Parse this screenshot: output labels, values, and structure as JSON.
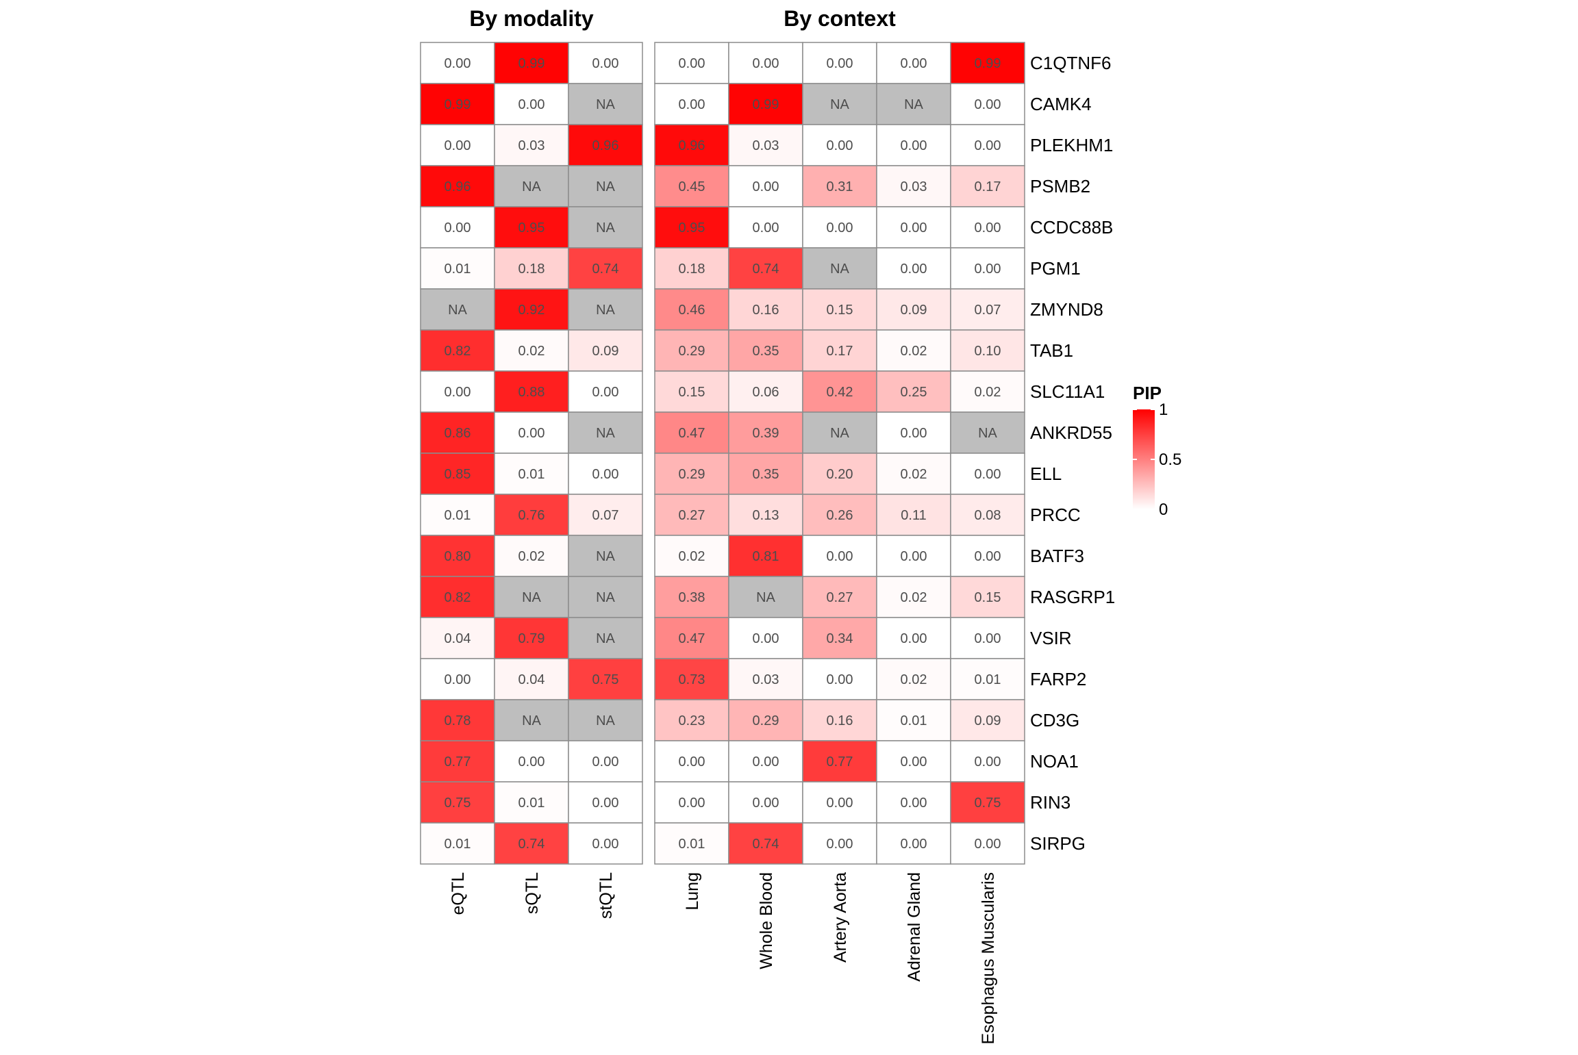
{
  "chart_data": {
    "type": "heatmap",
    "rows": [
      "C1QTNF6",
      "CAMK4",
      "PLEKHM1",
      "PSMB2",
      "CCDC88B",
      "PGM1",
      "ZMYND8",
      "TAB1",
      "SLC11A1",
      "ANKRD55",
      "ELL",
      "PRCC",
      "BATF3",
      "RASGRP1",
      "VSIR",
      "FARP2",
      "CD3G",
      "NOA1",
      "RIN3",
      "SIRPG"
    ],
    "panels": [
      {
        "title": "By modality",
        "columns": [
          "eQTL",
          "sQTL",
          "stQTL"
        ],
        "values": [
          [
            0.0,
            0.99,
            0.0
          ],
          [
            0.99,
            0.0,
            null
          ],
          [
            0.0,
            0.03,
            0.96
          ],
          [
            0.96,
            null,
            null
          ],
          [
            0.0,
            0.95,
            null
          ],
          [
            0.01,
            0.18,
            0.74
          ],
          [
            null,
            0.92,
            null
          ],
          [
            0.82,
            0.02,
            0.09
          ],
          [
            0.0,
            0.88,
            0.0
          ],
          [
            0.86,
            0.0,
            null
          ],
          [
            0.85,
            0.01,
            0.0
          ],
          [
            0.01,
            0.76,
            0.07
          ],
          [
            0.8,
            0.02,
            null
          ],
          [
            0.82,
            null,
            null
          ],
          [
            0.04,
            0.79,
            null
          ],
          [
            0.0,
            0.04,
            0.75
          ],
          [
            0.78,
            null,
            null
          ],
          [
            0.77,
            0.0,
            0.0
          ],
          [
            0.75,
            0.01,
            0.0
          ],
          [
            0.01,
            0.74,
            0.0
          ]
        ]
      },
      {
        "title": "By context",
        "columns": [
          "Lung",
          "Whole Blood",
          "Artery Aorta",
          "Adrenal Gland",
          "Esophagus Muscularis"
        ],
        "values": [
          [
            0.0,
            0.0,
            0.0,
            0.0,
            0.99
          ],
          [
            0.0,
            0.99,
            null,
            null,
            0.0
          ],
          [
            0.96,
            0.03,
            0.0,
            0.0,
            0.0
          ],
          [
            0.45,
            0.0,
            0.31,
            0.03,
            0.17
          ],
          [
            0.95,
            0.0,
            0.0,
            0.0,
            0.0
          ],
          [
            0.18,
            0.74,
            null,
            0.0,
            0.0
          ],
          [
            0.46,
            0.16,
            0.15,
            0.09,
            0.07
          ],
          [
            0.29,
            0.35,
            0.17,
            0.02,
            0.1
          ],
          [
            0.15,
            0.06,
            0.42,
            0.25,
            0.02
          ],
          [
            0.47,
            0.39,
            null,
            0.0,
            null
          ],
          [
            0.29,
            0.35,
            0.2,
            0.02,
            0.0
          ],
          [
            0.27,
            0.13,
            0.26,
            0.11,
            0.08
          ],
          [
            0.02,
            0.81,
            0.0,
            0.0,
            0.0
          ],
          [
            0.38,
            null,
            0.27,
            0.02,
            0.15
          ],
          [
            0.47,
            0.0,
            0.34,
            0.0,
            0.0
          ],
          [
            0.73,
            0.03,
            0.0,
            0.02,
            0.01
          ],
          [
            0.23,
            0.29,
            0.16,
            0.01,
            0.09
          ],
          [
            0.0,
            0.0,
            0.77,
            0.0,
            0.0
          ],
          [
            0.0,
            0.0,
            0.0,
            0.0,
            0.75
          ],
          [
            0.01,
            0.74,
            0.0,
            0.0,
            0.0
          ]
        ]
      }
    ],
    "na_label": "NA",
    "legend": {
      "title": "PIP",
      "range": [
        0,
        1
      ],
      "ticks": [
        {
          "value": 1,
          "label": "1"
        },
        {
          "value": 0.5,
          "label": "0.5"
        },
        {
          "value": 0,
          "label": "0"
        }
      ],
      "low_color": "#ffffff",
      "high_color": "#ff0000",
      "na_color": "#bebebe",
      "placement": "right"
    }
  }
}
